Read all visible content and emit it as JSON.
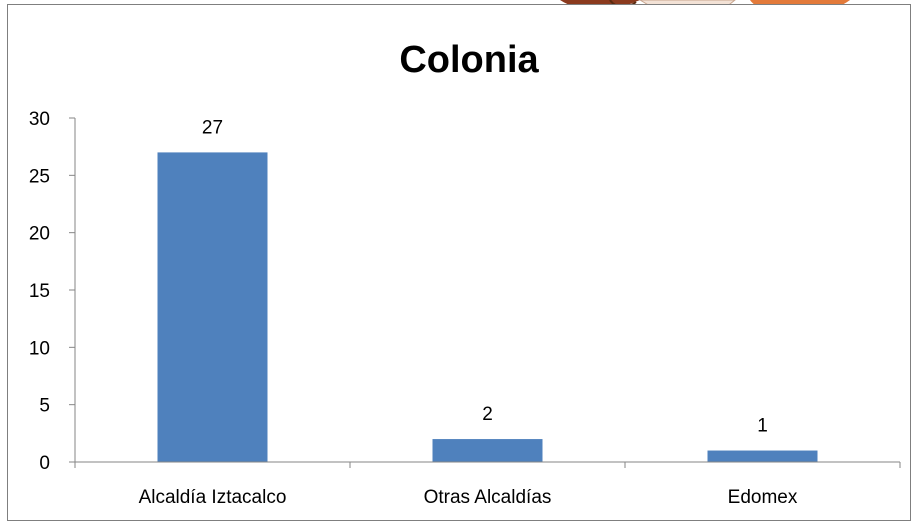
{
  "chart_data": {
    "type": "bar",
    "title": "Colonia",
    "categories": [
      "Alcaldía Iztacalco",
      "Otras Alcaldías",
      "Edomex"
    ],
    "values": [
      27,
      2,
      1
    ],
    "data_labels": [
      "27",
      "2",
      "1"
    ],
    "ylim": [
      0,
      30
    ],
    "yticks": [
      0,
      5,
      10,
      15,
      20,
      25,
      30
    ],
    "xlabel": "",
    "ylabel": "",
    "grid": false,
    "legend": false,
    "colors": {
      "bar": "#4f81bd"
    }
  }
}
